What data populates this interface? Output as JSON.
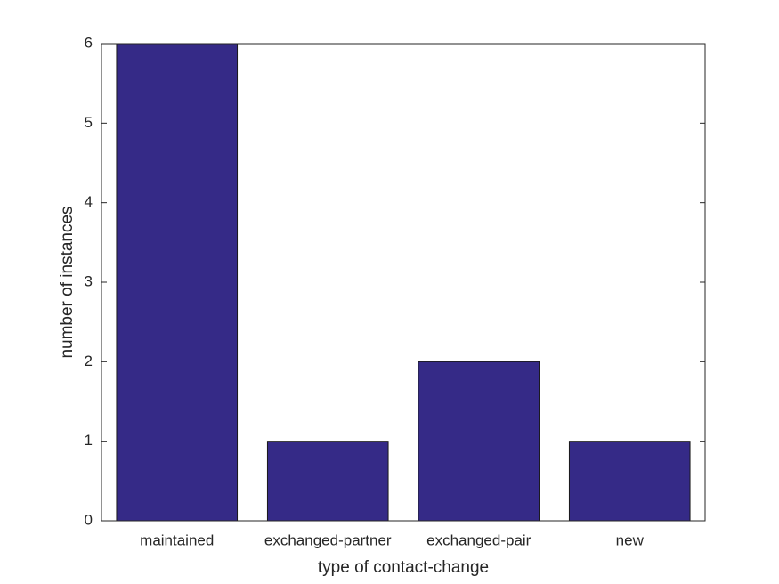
{
  "chart_data": {
    "type": "bar",
    "xlabel": "type of contact-change",
    "ylabel": "number of instances",
    "categories": [
      "maintained",
      "exchanged-partner",
      "exchanged-pair",
      "new"
    ],
    "values": [
      6,
      1,
      2,
      1
    ],
    "color": "#352a87",
    "ylim": [
      0,
      6
    ],
    "yticks": [
      0,
      1,
      2,
      3,
      4,
      5,
      6
    ],
    "grid": false
  }
}
